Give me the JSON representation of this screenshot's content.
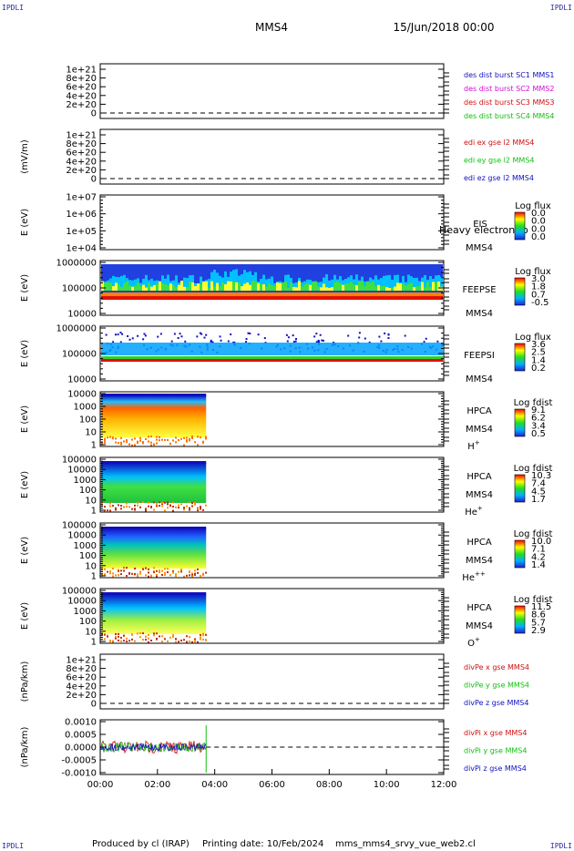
{
  "corners": {
    "tl": "IPDLI",
    "tr": "IPDLI",
    "bl": "IPDLI",
    "br": "IPDLI"
  },
  "header": {
    "title": "MMS4",
    "date": "15/Jun/2018 00:00"
  },
  "footer": {
    "produced": "Produced by cl (IRAP)",
    "printing": "Printing date: 10/Feb/2024",
    "file": "mms_mms4_srvy_vue_web2.cl"
  },
  "chart_data": {
    "type": "stacked-timeseries",
    "x_ticks": [
      "00:00",
      "02:00",
      "04:00",
      "06:00",
      "08:00",
      "10:00",
      "12:00"
    ],
    "x_range_hours": [
      0,
      12
    ],
    "data_end_hour": 3.7,
    "panels": [
      {
        "kind": "line",
        "ylabel": "",
        "yticks": [
          "1e+21",
          "8e+20",
          "6e+20",
          "4e+20",
          "2e+20",
          "0"
        ],
        "legend": [
          {
            "text": "des dist burst SC1 MMS1",
            "color": "#1010c0"
          },
          {
            "text": "des dist burst SC2 MMS2",
            "color": "#d010d0"
          },
          {
            "text": "des dist burst SC3 MMS3",
            "color": "#d01010"
          },
          {
            "text": "des dist burst SC4 MMS4",
            "color": "#10c010"
          }
        ]
      },
      {
        "kind": "line",
        "ylabel": "(mV/m)",
        "yticks": [
          "1e+21",
          "8e+20",
          "6e+20",
          "4e+20",
          "2e+20",
          "0"
        ],
        "legend": [
          {
            "text": "edi ex gse l2 MMS4",
            "color": "#d01010"
          },
          {
            "text": "edi ey gse l2 MMS4",
            "color": "#10c010"
          },
          {
            "text": "edi ez gse l2 MMS4",
            "color": "#1010c0"
          }
        ]
      },
      {
        "kind": "spec",
        "ylabel": "E (eV)",
        "yticks": [
          "1e+07",
          "1e+06",
          "1e+05",
          "1e+04"
        ],
        "instrument": "EIS",
        "sc": "MMS4",
        "overlay": "Heavy electron to",
        "cb_title": "Log flux",
        "cb_ticks": [
          "0.0",
          "0.0",
          "0.0",
          "0.0"
        ],
        "fill": "none"
      },
      {
        "kind": "spec",
        "ylabel": "E (eV)",
        "yticks": [
          "1000000",
          "100000",
          "10000"
        ],
        "instrument": "FEEPSE",
        "sc": "MMS4",
        "cb_title": "Log flux",
        "cb_ticks": [
          "3.0",
          "1.8",
          "0.7",
          "-0.5"
        ],
        "fill": "feepse"
      },
      {
        "kind": "spec",
        "ylabel": "E (eV)",
        "yticks": [
          "1000000",
          "100000",
          "10000"
        ],
        "instrument": "FEEPSI",
        "sc": "MMS4",
        "cb_title": "Log flux",
        "cb_ticks": [
          "3.6",
          "2.5",
          "1.4",
          "0.2"
        ],
        "fill": "feepsi"
      },
      {
        "kind": "spec",
        "ylabel": "E (eV)",
        "yticks": [
          "10000",
          "1000",
          "100",
          "10",
          "1"
        ],
        "instrument": "HPCA",
        "sc": "MMS4",
        "species": "H",
        "charge": "+",
        "cb_title": "Log fdist",
        "cb_ticks": [
          "9.1",
          "6.2",
          "3.4",
          "0.5"
        ],
        "fill": "hplus"
      },
      {
        "kind": "spec",
        "ylabel": "E (eV)",
        "yticks": [
          "100000",
          "10000",
          "1000",
          "100",
          "10",
          "1"
        ],
        "instrument": "HPCA",
        "sc": "MMS4",
        "species": "He",
        "charge": "+",
        "cb_title": "Log fdist",
        "cb_ticks": [
          "10.3",
          "7.4",
          "4.5",
          "1.7"
        ],
        "fill": "heplus"
      },
      {
        "kind": "spec",
        "ylabel": "E (eV)",
        "yticks": [
          "100000",
          "10000",
          "1000",
          "100",
          "10",
          "1"
        ],
        "instrument": "HPCA",
        "sc": "MMS4",
        "species": "He",
        "charge": "++",
        "cb_title": "Log fdist",
        "cb_ticks": [
          "10.0",
          "7.1",
          "4.2",
          "1.4"
        ],
        "fill": "heplusplus"
      },
      {
        "kind": "spec",
        "ylabel": "E (eV)",
        "yticks": [
          "100000",
          "10000",
          "1000",
          "100",
          "10",
          "1"
        ],
        "instrument": "HPCA",
        "sc": "MMS4",
        "species": "O",
        "charge": "+",
        "cb_title": "Log fdist",
        "cb_ticks": [
          "11.5",
          "8.6",
          "5.7",
          "2.9"
        ],
        "fill": "oplus"
      },
      {
        "kind": "line",
        "ylabel": "(nPa/km)",
        "yticks": [
          "1e+21",
          "8e+20",
          "6e+20",
          "4e+20",
          "2e+20",
          "0"
        ],
        "legend": [
          {
            "text": "divPe x gse MMS4",
            "color": "#d01010"
          },
          {
            "text": "divPe y gse MMS4",
            "color": "#10c010"
          },
          {
            "text": "divPe z gse MMS4",
            "color": "#1010c0"
          }
        ]
      },
      {
        "kind": "noise",
        "ylabel": "(nPa/km)",
        "yticks": [
          "0.0010",
          "0.0005",
          "0.0000",
          "-0.0005",
          "-0.0010"
        ],
        "legend": [
          {
            "text": "divPi x gse MMS4",
            "color": "#d01010"
          },
          {
            "text": "divPi y gse MMS4",
            "color": "#10c010"
          },
          {
            "text": "divPi z gse MMS4",
            "color": "#1010c0"
          }
        ]
      }
    ]
  }
}
